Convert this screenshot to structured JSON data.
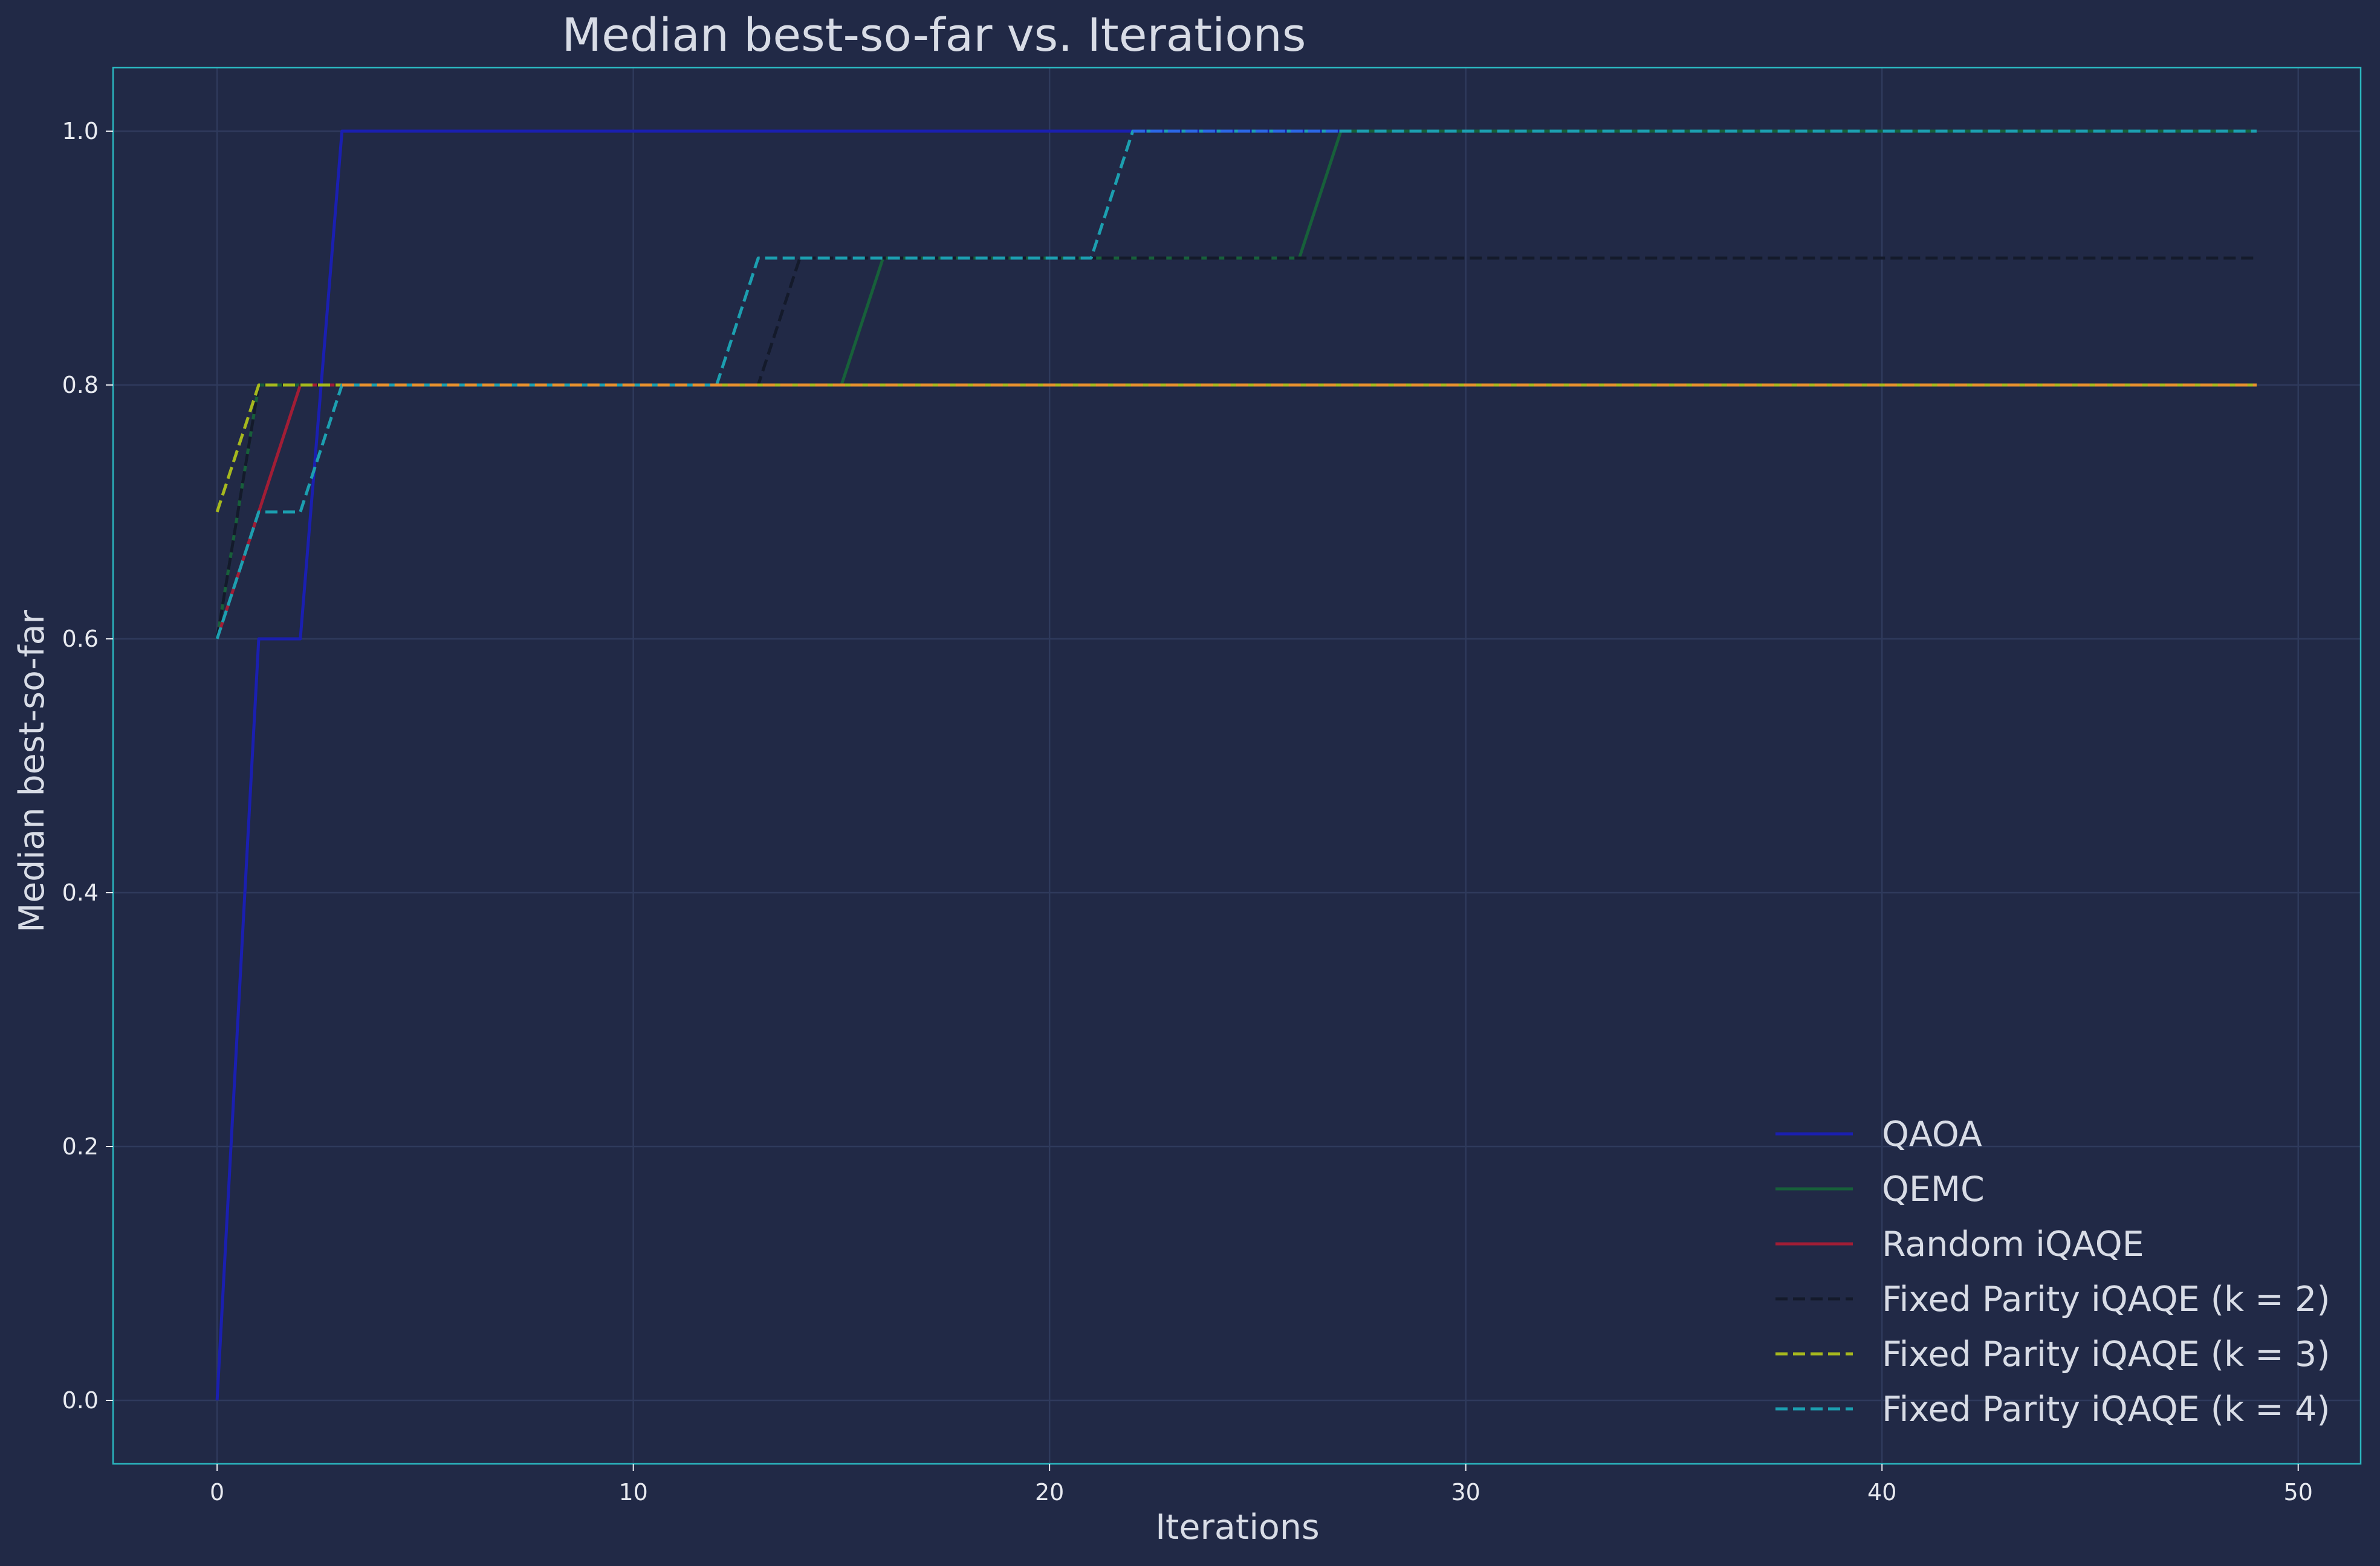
{
  "chart_data": {
    "type": "line",
    "title": "Median best-so-far vs. Iterations",
    "xlabel": "Iterations",
    "ylabel": "Median best-so-far",
    "xlim": [
      -2.5,
      51.5
    ],
    "ylim": [
      -0.05,
      1.05
    ],
    "xticks": [
      0,
      10,
      20,
      30,
      40,
      50
    ],
    "yticks": [
      0.0,
      0.2,
      0.4,
      0.6,
      0.8,
      1.0
    ],
    "xtick_labels": [
      "0",
      "10",
      "20",
      "30",
      "40",
      "50"
    ],
    "ytick_labels": [
      "0.0",
      "0.2",
      "0.4",
      "0.6",
      "0.8",
      "1.0"
    ],
    "grid": true,
    "legend_position": "lower-right",
    "series": [
      {
        "name": "QAOA",
        "color": "#1a1fb0",
        "dash": "solid",
        "points": [
          [
            0,
            0.0
          ],
          [
            1,
            0.6
          ],
          [
            2,
            0.6
          ],
          [
            3,
            1.0
          ],
          [
            49,
            1.0
          ]
        ]
      },
      {
        "name": "QEMC",
        "color": "#17603a",
        "dash": "solid",
        "points": [
          [
            0,
            0.6
          ],
          [
            1,
            0.8
          ],
          [
            15,
            0.8
          ],
          [
            16,
            0.9
          ],
          [
            26,
            0.9
          ],
          [
            27,
            1.0
          ],
          [
            49,
            1.0
          ]
        ]
      },
      {
        "name": "Random iQAQE",
        "color": "#a11d35",
        "dash": "solid",
        "points": [
          [
            0,
            0.6
          ],
          [
            1,
            0.7
          ],
          [
            2,
            0.8
          ],
          [
            49,
            0.8
          ]
        ]
      },
      {
        "name": "Fixed Parity iQAQE (k = 2)",
        "color": "#141a2b",
        "dash": "dashed",
        "points": [
          [
            0,
            0.6
          ],
          [
            1,
            0.8
          ],
          [
            13,
            0.8
          ],
          [
            14,
            0.9
          ],
          [
            49,
            0.9
          ]
        ]
      },
      {
        "name": "Fixed Parity iQAQE (k = 3)",
        "color": "#a6b81e",
        "dash": "dashed",
        "points": [
          [
            0,
            0.7
          ],
          [
            1,
            0.8
          ],
          [
            49,
            0.8
          ]
        ]
      },
      {
        "name": "Fixed Parity iQAQE (k = 4)",
        "color": "#1c9fb0",
        "dash": "dashed",
        "points": [
          [
            0,
            0.6
          ],
          [
            1,
            0.7
          ],
          [
            2,
            0.7
          ],
          [
            3,
            0.8
          ],
          [
            12,
            0.8
          ],
          [
            13,
            0.9
          ],
          [
            21,
            0.9
          ],
          [
            22,
            1.0
          ],
          [
            49,
            1.0
          ]
        ]
      }
    ],
    "overlay_series": [
      {
        "color": "#e6902e",
        "dash": "dashed",
        "points": [
          [
            3,
            0.8
          ],
          [
            49,
            0.8
          ]
        ]
      },
      {
        "color": "#2b67e6",
        "dash": "dashed",
        "points": [
          [
            22,
            1.0
          ],
          [
            27,
            1.0
          ]
        ]
      }
    ]
  },
  "colors": {
    "background": "#212946",
    "frame": "#2ab7c0",
    "grid": "#2f3a5c"
  }
}
